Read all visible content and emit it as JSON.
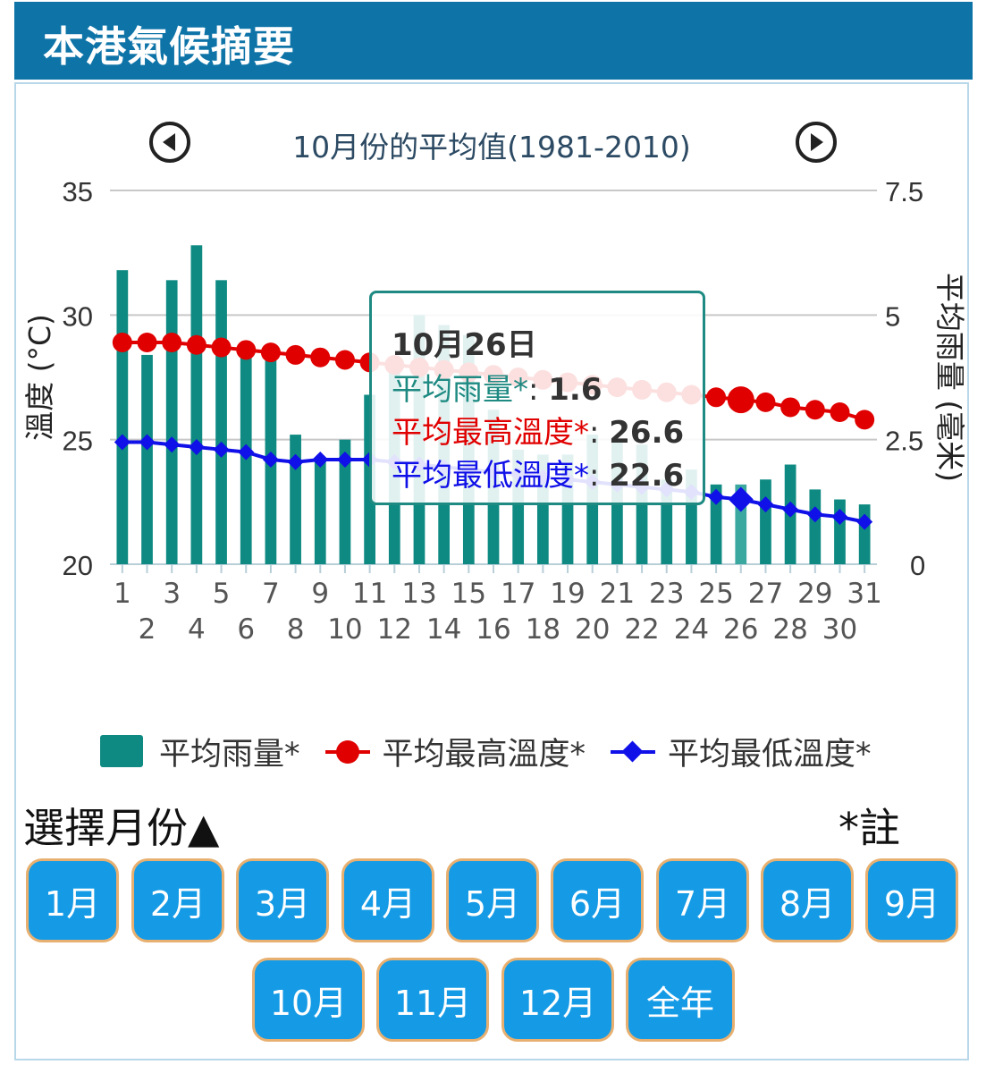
{
  "header": {
    "title": "本港氣候摘要"
  },
  "nav": {
    "title": "10月份的平均值(1981-2010)"
  },
  "chart_data": {
    "type": "bar",
    "title": "10月份的平均值(1981-2010)",
    "x": [
      1,
      2,
      3,
      4,
      5,
      6,
      7,
      8,
      9,
      10,
      11,
      12,
      13,
      14,
      15,
      16,
      17,
      18,
      19,
      20,
      21,
      22,
      23,
      24,
      25,
      26,
      27,
      28,
      29,
      30,
      31
    ],
    "y_left": {
      "label": "溫度 (°C)",
      "range": [
        20,
        35
      ],
      "ticks": [
        "20",
        "25",
        "30",
        "35"
      ]
    },
    "y_right": {
      "label": "平均雨量 (毫米)",
      "range": [
        0,
        7.5
      ],
      "ticks": [
        "0",
        "2.5",
        "5",
        "7.5"
      ]
    },
    "x_ticks_odd": [
      "1",
      "3",
      "5",
      "7",
      "9",
      "11",
      "13",
      "15",
      "17",
      "19",
      "21",
      "23",
      "25",
      "27",
      "29",
      "31"
    ],
    "x_ticks_even": [
      "2",
      "4",
      "6",
      "8",
      "10",
      "12",
      "14",
      "16",
      "18",
      "20",
      "22",
      "24",
      "26",
      "28",
      "30"
    ],
    "grid": true,
    "legend_position": "bottom",
    "series": [
      {
        "name": "平均雨量*",
        "kind": "bar",
        "axis": "right",
        "color": "#0e8a82",
        "values": [
          5.9,
          4.2,
          5.7,
          6.4,
          5.7,
          4.2,
          4.3,
          2.6,
          2.1,
          2.5,
          3.4,
          4.0,
          5.0,
          4.8,
          4.6,
          3.1,
          2.3,
          2.2,
          2.2,
          2.6,
          2.5,
          2.4,
          1.7,
          1.9,
          1.6,
          1.6,
          1.7,
          2.0,
          1.5,
          1.3,
          1.2
        ]
      },
      {
        "name": "平均最高溫度*",
        "kind": "line",
        "marker": "circle",
        "axis": "left",
        "color": "#e00000",
        "values": [
          28.9,
          28.9,
          28.9,
          28.8,
          28.7,
          28.6,
          28.5,
          28.4,
          28.3,
          28.2,
          28.1,
          28.0,
          27.9,
          27.8,
          27.7,
          27.6,
          27.5,
          27.4,
          27.3,
          27.2,
          27.1,
          27.0,
          26.9,
          26.8,
          26.7,
          26.6,
          26.5,
          26.3,
          26.2,
          26.1,
          25.8
        ]
      },
      {
        "name": "平均最低溫度*",
        "kind": "line",
        "marker": "diamond",
        "axis": "left",
        "color": "#1010e8",
        "values": [
          24.9,
          24.9,
          24.8,
          24.7,
          24.6,
          24.5,
          24.2,
          24.1,
          24.2,
          24.2,
          24.2,
          24.1,
          24.0,
          23.9,
          23.8,
          23.7,
          23.6,
          23.5,
          23.4,
          23.3,
          23.2,
          23.1,
          23.0,
          22.9,
          22.7,
          22.6,
          22.4,
          22.2,
          22.0,
          21.9,
          21.7
        ]
      }
    ],
    "highlight_index": 25
  },
  "tooltip": {
    "title": "10月26日",
    "rain_label": "平均雨量*",
    "rain_value": "1.6",
    "max_label": "平均最高溫度*",
    "max_value": "26.6",
    "min_label": "平均最低溫度*",
    "min_value": "22.6",
    "separator": ": "
  },
  "legend": {
    "rain": "平均雨量*",
    "max": "平均最高溫度*",
    "min": "平均最低溫度*"
  },
  "selector": {
    "title": "選擇月份▲",
    "note": "*註",
    "months_row1": [
      "1月",
      "2月",
      "3月",
      "4月",
      "5月",
      "6月",
      "7月",
      "8月",
      "9月"
    ],
    "months_row2": [
      "10月",
      "11月",
      "12月",
      "全年"
    ]
  },
  "colors": {
    "header_bg": "#0e74a8",
    "rain": "#0e8a82",
    "max": "#e00000",
    "min": "#1010e8",
    "button_bg": "#159be6",
    "button_border": "#e8b070"
  }
}
